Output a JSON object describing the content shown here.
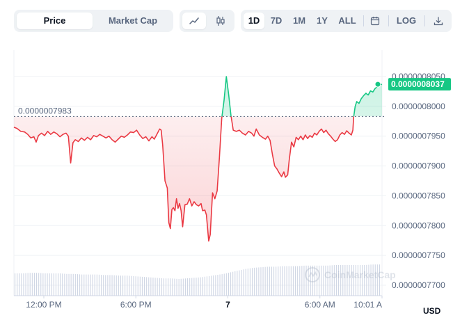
{
  "toolbar": {
    "metric_tabs": [
      {
        "label": "Price",
        "active": true
      },
      {
        "label": "Market Cap",
        "active": false
      }
    ],
    "chart_type_icons": [
      "line-chart-icon",
      "candlestick-icon"
    ],
    "ranges": [
      {
        "label": "1D",
        "active": true
      },
      {
        "label": "7D",
        "active": false
      },
      {
        "label": "1M",
        "active": false
      },
      {
        "label": "1Y",
        "active": false
      },
      {
        "label": "ALL",
        "active": false
      }
    ],
    "calendar_icon": "calendar-icon",
    "log_label": "LOG",
    "download_icon": "download-icon"
  },
  "currency": "USD",
  "watermark": "CoinMarketCap",
  "colors": {
    "down": "#ea3943",
    "up": "#16c784",
    "reference_line": "#58667e",
    "volume": "#cfd6e4"
  },
  "chart_data": {
    "type": "line",
    "reference_price_label": "0.0000007983",
    "reference_price": 7.983e-07,
    "current_price_label": "0.0000008037",
    "current_price": 8.037e-07,
    "y_ticks": [
      "0.0000008050",
      "0.0000008000",
      "0.0000007950",
      "0.0000007900",
      "0.0000007850",
      "0.0000007800",
      "0.0000007750",
      "0.0000007700"
    ],
    "y_tick_values": [
      8.05e-07,
      8e-07,
      7.95e-07,
      7.9e-07,
      7.85e-07,
      7.8e-07,
      7.75e-07,
      7.7e-07
    ],
    "x_ticks": [
      {
        "label": "12:00 PM",
        "hour": 1.95
      },
      {
        "label": "6:00 PM",
        "hour": 7.95
      },
      {
        "label": "7",
        "hour": 13.95
      },
      {
        "label": "6:00 AM",
        "hour": 19.95
      },
      {
        "label": "10:01 A",
        "hour": 24.0
      }
    ],
    "x_unit": "hours since 10:03 AM",
    "series": [
      {
        "points": [
          [
            0.0,
            7.965e-07
          ],
          [
            0.2,
            7.963e-07
          ],
          [
            0.45,
            7.958e-07
          ],
          [
            0.7,
            7.957e-07
          ],
          [
            0.9,
            7.953e-07
          ],
          [
            1.1,
            7.947e-07
          ],
          [
            1.3,
            7.949e-07
          ],
          [
            1.45,
            7.94e-07
          ],
          [
            1.6,
            7.951e-07
          ],
          [
            1.8,
            7.955e-07
          ],
          [
            2.0,
            7.951e-07
          ],
          [
            2.2,
            7.958e-07
          ],
          [
            2.4,
            7.953e-07
          ],
          [
            2.6,
            7.957e-07
          ],
          [
            2.8,
            7.954e-07
          ],
          [
            3.0,
            7.949e-07
          ],
          [
            3.2,
            7.953e-07
          ],
          [
            3.4,
            7.955e-07
          ],
          [
            3.55,
            7.95e-07
          ],
          [
            3.7,
            7.905e-07
          ],
          [
            3.85,
            7.939e-07
          ],
          [
            4.0,
            7.944e-07
          ],
          [
            4.2,
            7.941e-07
          ],
          [
            4.4,
            7.947e-07
          ],
          [
            4.6,
            7.943e-07
          ],
          [
            4.8,
            7.948e-07
          ],
          [
            5.0,
            7.944e-07
          ],
          [
            5.2,
            7.951e-07
          ],
          [
            5.4,
            7.949e-07
          ],
          [
            5.6,
            7.953e-07
          ],
          [
            5.8,
            7.95e-07
          ],
          [
            6.0,
            7.947e-07
          ],
          [
            6.2,
            7.95e-07
          ],
          [
            6.4,
            7.944e-07
          ],
          [
            6.6,
            7.94e-07
          ],
          [
            6.8,
            7.945e-07
          ],
          [
            7.0,
            7.95e-07
          ],
          [
            7.2,
            7.948e-07
          ],
          [
            7.4,
            7.952e-07
          ],
          [
            7.6,
            7.957e-07
          ],
          [
            7.8,
            7.956e-07
          ],
          [
            8.0,
            7.96e-07
          ],
          [
            8.2,
            7.952e-07
          ],
          [
            8.4,
            7.946e-07
          ],
          [
            8.6,
            7.949e-07
          ],
          [
            8.8,
            7.942e-07
          ],
          [
            9.0,
            7.949e-07
          ],
          [
            9.15,
            7.945e-07
          ],
          [
            9.3,
            7.952e-07
          ],
          [
            9.5,
            7.962e-07
          ],
          [
            9.6,
            7.96e-07
          ],
          [
            9.7,
            7.935e-07
          ],
          [
            9.85,
            7.875e-07
          ],
          [
            10.0,
            7.863e-07
          ],
          [
            10.1,
            7.805e-07
          ],
          [
            10.2,
            7.795e-07
          ],
          [
            10.3,
            7.827e-07
          ],
          [
            10.4,
            7.83e-07
          ],
          [
            10.5,
            7.825e-07
          ],
          [
            10.6,
            7.845e-07
          ],
          [
            10.7,
            7.829e-07
          ],
          [
            10.8,
            7.837e-07
          ],
          [
            10.9,
            7.825e-07
          ],
          [
            11.0,
            7.798e-07
          ],
          [
            11.15,
            7.835e-07
          ],
          [
            11.3,
            7.836e-07
          ],
          [
            11.45,
            7.845e-07
          ],
          [
            11.6,
            7.833e-07
          ],
          [
            11.75,
            7.84e-07
          ],
          [
            11.9,
            7.835e-07
          ],
          [
            12.05,
            7.833e-07
          ],
          [
            12.2,
            7.837e-07
          ],
          [
            12.3,
            7.825e-07
          ],
          [
            12.45,
            7.826e-07
          ],
          [
            12.55,
            7.818e-07
          ],
          [
            12.7,
            7.774e-07
          ],
          [
            12.8,
            7.785e-07
          ],
          [
            12.95,
            7.855e-07
          ],
          [
            13.1,
            7.845e-07
          ],
          [
            13.25,
            7.858e-07
          ],
          [
            13.4,
            7.915e-07
          ],
          [
            13.55,
            7.98e-07
          ],
          [
            13.7,
            8.01e-07
          ],
          [
            13.85,
            8.05e-07
          ],
          [
            14.0,
            8.02e-07
          ],
          [
            14.15,
            7.985e-07
          ],
          [
            14.3,
            7.96e-07
          ],
          [
            14.5,
            7.958e-07
          ],
          [
            14.7,
            7.96e-07
          ],
          [
            14.9,
            7.955e-07
          ],
          [
            15.1,
            7.952e-07
          ],
          [
            15.3,
            7.958e-07
          ],
          [
            15.5,
            7.955e-07
          ],
          [
            15.65,
            7.95e-07
          ],
          [
            15.8,
            7.962e-07
          ],
          [
            16.0,
            7.952e-07
          ],
          [
            16.2,
            7.948e-07
          ],
          [
            16.4,
            7.945e-07
          ],
          [
            16.55,
            7.95e-07
          ],
          [
            16.7,
            7.943e-07
          ],
          [
            16.85,
            7.92e-07
          ],
          [
            17.0,
            7.9e-07
          ],
          [
            17.15,
            7.895e-07
          ],
          [
            17.3,
            7.888e-07
          ],
          [
            17.45,
            7.882e-07
          ],
          [
            17.6,
            7.89e-07
          ],
          [
            17.7,
            7.881e-07
          ],
          [
            17.85,
            7.885e-07
          ],
          [
            17.95,
            7.91e-07
          ],
          [
            18.1,
            7.94e-07
          ],
          [
            18.25,
            7.932e-07
          ],
          [
            18.4,
            7.948e-07
          ],
          [
            18.55,
            7.944e-07
          ],
          [
            18.7,
            7.95e-07
          ],
          [
            18.85,
            7.944e-07
          ],
          [
            19.0,
            7.952e-07
          ],
          [
            19.15,
            7.946e-07
          ],
          [
            19.3,
            7.951e-07
          ],
          [
            19.45,
            7.948e-07
          ],
          [
            19.6,
            7.955e-07
          ],
          [
            19.75,
            7.952e-07
          ],
          [
            19.9,
            7.958e-07
          ],
          [
            20.05,
            7.962e-07
          ],
          [
            20.2,
            7.956e-07
          ],
          [
            20.35,
            7.96e-07
          ],
          [
            20.5,
            7.954e-07
          ],
          [
            20.65,
            7.95e-07
          ],
          [
            20.8,
            7.945e-07
          ],
          [
            20.95,
            7.941e-07
          ],
          [
            21.1,
            7.944e-07
          ],
          [
            21.25,
            7.952e-07
          ],
          [
            21.4,
            7.956e-07
          ],
          [
            21.55,
            7.953e-07
          ],
          [
            21.7,
            7.959e-07
          ],
          [
            21.85,
            7.955e-07
          ],
          [
            22.0,
            7.952e-07
          ],
          [
            22.1,
            7.96e-07
          ],
          [
            22.15,
            7.982e-07
          ],
          [
            22.25,
            8e-07
          ],
          [
            22.35,
            8.008e-07
          ],
          [
            22.5,
            8.005e-07
          ],
          [
            22.65,
            8.013e-07
          ],
          [
            22.8,
            8.018e-07
          ],
          [
            22.95,
            8.022e-07
          ],
          [
            23.1,
            8.019e-07
          ],
          [
            23.25,
            8.026e-07
          ],
          [
            23.4,
            8.024e-07
          ],
          [
            23.55,
            8.03e-07
          ],
          [
            23.7,
            8.033e-07
          ],
          [
            23.85,
            8.036e-07
          ],
          [
            24.0,
            8.037e-07
          ]
        ]
      }
    ],
    "volume_level": [
      0.4,
      0.4,
      0.41,
      0.41,
      0.4,
      0.4,
      0.4,
      0.39,
      0.39,
      0.38,
      0.38,
      0.38,
      0.37,
      0.37,
      0.36,
      0.36,
      0.35,
      0.34,
      0.33,
      0.32,
      0.31,
      0.31,
      0.3,
      0.31,
      0.32,
      0.33,
      0.35,
      0.37,
      0.39,
      0.42,
      0.45,
      0.48,
      0.5,
      0.51,
      0.52,
      0.52,
      0.53,
      0.53,
      0.53,
      0.54,
      0.54,
      0.54,
      0.54,
      0.55,
      0.55,
      0.55,
      0.55,
      0.55,
      0.56,
      0.56
    ]
  }
}
